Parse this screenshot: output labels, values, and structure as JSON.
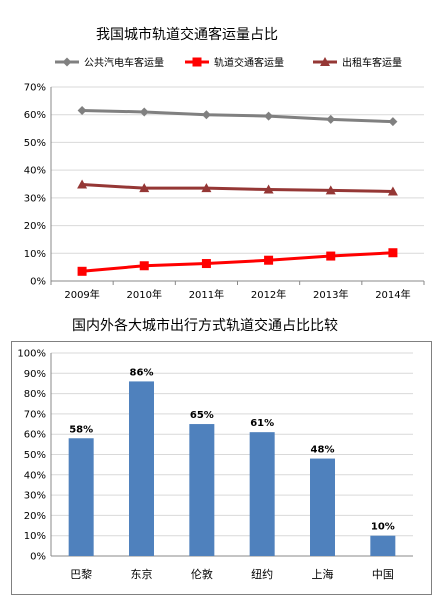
{
  "chart_data": [
    {
      "type": "line",
      "title": "我国城市轨道交通客运量占比",
      "categories": [
        "2009年",
        "2010年",
        "2011年",
        "2012年",
        "2013年",
        "2014年"
      ],
      "ylim": [
        0,
        70
      ],
      "yticks": [
        "0%",
        "10%",
        "20%",
        "30%",
        "40%",
        "50%",
        "60%",
        "70%"
      ],
      "grid": true,
      "legend": "top",
      "series": [
        {
          "name": "公共汽电车客运量",
          "color": "#808080",
          "marker": "diamond",
          "values": [
            61.5,
            61,
            60,
            59.5,
            58.3,
            57.5
          ]
        },
        {
          "name": "轨道交通客运量",
          "color": "#ff0000",
          "marker": "square",
          "values": [
            3.5,
            5.5,
            6.3,
            7.5,
            9,
            10.2
          ]
        },
        {
          "name": "出租车客运量",
          "color": "#953735",
          "marker": "triangle",
          "values": [
            34.8,
            33.5,
            33.5,
            33,
            32.7,
            32.3
          ]
        }
      ]
    },
    {
      "type": "bar",
      "title": "国内外各大城市出行方式轨道交通占比比较",
      "categories": [
        "巴黎",
        "东京",
        "伦敦",
        "纽约",
        "上海",
        "中国"
      ],
      "values": [
        58,
        86,
        65,
        61,
        48,
        10
      ],
      "data_labels": [
        "58%",
        "86%",
        "65%",
        "61%",
        "48%",
        "10%"
      ],
      "ylim": [
        0,
        100
      ],
      "yticks": [
        "0%",
        "10%",
        "20%",
        "30%",
        "40%",
        "50%",
        "60%",
        "70%",
        "80%",
        "90%",
        "100%"
      ],
      "grid": true,
      "bar_color": "#4f81bd"
    }
  ]
}
